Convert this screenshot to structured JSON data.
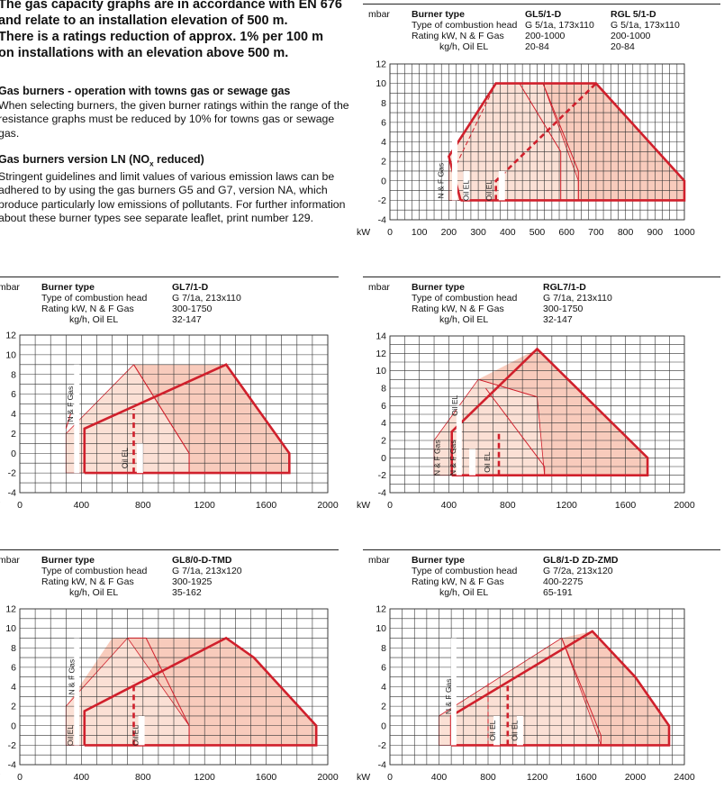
{
  "intro": {
    "headline": "The gas capacity graphs are in accordance with EN 676\nand relate to an installation elevation of 500 m.\nThere is a ratings reduction of approx. 1% per 100 m\non installations with an elevation above 500 m.",
    "section1_title": "Gas burners - operation with towns gas or sewage gas",
    "section1_text": "When selecting burners, the given burner ratings within the range of the resistance graphs must be reduced by 10% for towns gas or sewage gas.",
    "section2_title_pre": "Gas burners version LN (NO",
    "section2_title_sub": "x",
    "section2_title_post": " reduced)",
    "section2_text": "Stringent guidelines and limit values of various emission laws can be adhered to by using the gas burners G5 and G7, version NA, which produce particularly low emissions of pollutants. For further information about these burner types see separate leaflet, print number 129."
  },
  "row_labels": {
    "burner_type": "Burner type",
    "combustion_head": "Type of combustion head",
    "rating": "Rating kW,  N & F Gas",
    "oil": "kg/h, Oil EL",
    "mbar": "mbar",
    "kw": "kW",
    "gas_label": "N & F Gas",
    "oil_label": "Oil EL"
  },
  "colors": {
    "fill": "#f8cbbc",
    "fill_light": "#fbe0d5",
    "line": "#d0202c",
    "grid": "#333333"
  },
  "chart_data": [
    {
      "type": "area",
      "models": [
        {
          "name": "GL5/1-D",
          "head": "G 5/1a, 173x110",
          "rating": "200-1000",
          "oil": "20-84"
        },
        {
          "name": "RGL 5/1-D",
          "head": "G 5/1a, 173x110",
          "rating": "200-1000",
          "oil": "20-84"
        }
      ],
      "xticks": [
        0,
        100,
        200,
        300,
        400,
        500,
        600,
        700,
        800,
        900,
        1000
      ],
      "xticklabels": [
        "0",
        "100",
        "200",
        "300",
        "400",
        "500",
        "600",
        "700",
        "800",
        "900",
        "1000"
      ],
      "xlim": [
        0,
        1000
      ],
      "yticks": [
        -4,
        -2,
        0,
        2,
        4,
        6,
        8,
        10,
        12
      ],
      "ylim": [
        -4,
        12
      ],
      "fill_polygon": [
        [
          200,
          -2
        ],
        [
          200,
          2.5
        ],
        [
          360,
          10
        ],
        [
          700,
          10
        ],
        [
          1000,
          0
        ],
        [
          1000,
          -2
        ]
      ],
      "fill_light_polygon": [
        [
          200,
          2.5
        ],
        [
          360,
          10
        ],
        [
          520,
          10
        ],
        [
          640,
          0
        ],
        [
          640,
          -2
        ],
        [
          200,
          -2
        ]
      ],
      "thick_outline": [
        [
          240,
          -2
        ],
        [
          200,
          2.5
        ],
        [
          360,
          10
        ],
        [
          700,
          10
        ],
        [
          1000,
          0
        ],
        [
          1000,
          -2
        ],
        [
          240,
          -2
        ]
      ],
      "thin_curves": [
        [
          [
            520,
            10
          ],
          [
            640,
            1
          ],
          [
            640,
            -2
          ]
        ],
        [
          [
            440,
            10
          ],
          [
            580,
            3
          ],
          [
            580,
            -2
          ]
        ]
      ],
      "thin_dashed": [
        [
          [
            215,
            1
          ],
          [
            360,
            10
          ]
        ]
      ],
      "thick_dashed": [
        [
          [
            360,
            -2
          ],
          [
            360,
            0
          ],
          [
            700,
            10
          ]
        ]
      ],
      "gas_line": {
        "x": 220,
        "from": -2,
        "to": 5
      },
      "oil_lines": [
        {
          "x": 260,
          "from": -2,
          "to": 1
        },
        {
          "x": 380,
          "from": -2,
          "to": 1
        }
      ],
      "labels": [
        {
          "text": "N & F Gas",
          "x": 182,
          "y": 0
        },
        {
          "text": "Oil EL",
          "x": 267,
          "y": -1
        },
        {
          "text": "Oil EL",
          "x": 345,
          "y": -1
        }
      ]
    },
    {
      "type": "area",
      "models": [
        {
          "name": "GL7/1-D",
          "head": "G 7/1a, 213x110",
          "rating": "300-1750",
          "oil": "32-147"
        }
      ],
      "xticks": [
        0,
        400,
        800,
        1200,
        1600,
        2000
      ],
      "xticklabels": [
        "0",
        "400",
        "800",
        "1200",
        "1600",
        "2000"
      ],
      "xlim": [
        0,
        2000
      ],
      "yticks": [
        -4,
        -2,
        0,
        2,
        4,
        6,
        8,
        10,
        12
      ],
      "ylim": [
        -4,
        12
      ],
      "fill_polygon": [
        [
          300,
          -2
        ],
        [
          300,
          2
        ],
        [
          740,
          9
        ],
        [
          1340,
          9
        ],
        [
          1750,
          0
        ],
        [
          1750,
          -2
        ]
      ],
      "fill_light_polygon": [
        [
          300,
          2
        ],
        [
          740,
          9
        ],
        [
          1100,
          0
        ],
        [
          1100,
          -2
        ],
        [
          300,
          -2
        ]
      ],
      "thick_outline": [
        [
          420,
          -2
        ],
        [
          420,
          2.5
        ],
        [
          1340,
          9
        ],
        [
          1750,
          0
        ],
        [
          1750,
          -2
        ],
        [
          420,
          -2
        ]
      ],
      "thin_curves": [
        [
          [
            740,
            9
          ],
          [
            1100,
            0
          ],
          [
            1100,
            -2
          ]
        ],
        [
          [
            300,
            2.5
          ],
          [
            330,
            4
          ]
        ]
      ],
      "thin_dashed": [],
      "thick_dashed": [
        [
          [
            740,
            -2
          ],
          [
            740,
            4.5
          ]
        ]
      ],
      "gas_line": {
        "x": 370,
        "from": -2,
        "to": 9
      },
      "oil_lines": [
        {
          "x": 780,
          "from": -2,
          "to": 1
        }
      ],
      "labels": [
        {
          "text": "N & F Gas",
          "x": 345,
          "y": 5
        },
        {
          "text": "Oil EL",
          "x": 700,
          "y": -0.5
        }
      ]
    },
    {
      "type": "area",
      "models": [
        {
          "name": "RGL7/1-D",
          "head": "G 7/1a, 213x110",
          "rating": "300-1750",
          "oil": "32-147"
        }
      ],
      "xticks": [
        0,
        400,
        800,
        1200,
        1600,
        2000
      ],
      "xticklabels": [
        "0",
        "400",
        "800",
        "1200",
        "1600",
        "2000"
      ],
      "xlim": [
        0,
        2000
      ],
      "yticks": [
        -4,
        -2,
        0,
        2,
        4,
        6,
        8,
        10,
        12,
        14
      ],
      "ylim": [
        -4,
        14
      ],
      "fill_polygon": [
        [
          300,
          -2
        ],
        [
          300,
          2
        ],
        [
          600,
          9
        ],
        [
          1000,
          12.5
        ],
        [
          1750,
          0
        ],
        [
          1750,
          -2
        ]
      ],
      "fill_light_polygon": [
        [
          300,
          2
        ],
        [
          600,
          9
        ],
        [
          1000,
          7
        ],
        [
          1050,
          -2
        ],
        [
          300,
          -2
        ]
      ],
      "thick_outline": [
        [
          420,
          -2
        ],
        [
          420,
          3
        ],
        [
          1000,
          12.5
        ],
        [
          1750,
          0
        ],
        [
          1750,
          -2
        ],
        [
          420,
          -2
        ]
      ],
      "thin_curves": [
        [
          [
            600,
            9
          ],
          [
            1000,
            7
          ]
        ],
        [
          [
            650,
            8
          ],
          [
            1050,
            -1
          ],
          [
            1050,
            -2
          ]
        ]
      ],
      "thin_dashed": [],
      "thick_dashed": [
        [
          [
            740,
            -2
          ],
          [
            740,
            3
          ]
        ]
      ],
      "gas_line": {
        "x": 470,
        "from": -2,
        "to": 6
      },
      "oil_lines": [
        {
          "x": 560,
          "from": -2,
          "to": 1
        }
      ],
      "labels": [
        {
          "text": "N & F Gas",
          "x": 340,
          "y": 0
        },
        {
          "text": "N & F Gas",
          "x": 445,
          "y": 0
        },
        {
          "text": "Oil EL",
          "x": 460,
          "y": 6
        },
        {
          "text": "Oil EL",
          "x": 680,
          "y": -0.5
        }
      ]
    },
    {
      "type": "area",
      "models": [
        {
          "name": "GL8/0-D-TMD",
          "head": "G 7/1a, 213x120",
          "rating": "300-1925",
          "oil": "35-162"
        }
      ],
      "xticks": [
        0,
        400,
        800,
        1200,
        1600,
        2000
      ],
      "xticklabels": [
        "0",
        "400",
        "800",
        "1200",
        "1600",
        "2000"
      ],
      "xlim": [
        0,
        2000
      ],
      "yticks": [
        -4,
        -2,
        0,
        2,
        4,
        6,
        8,
        10,
        12
      ],
      "ylim": [
        -4,
        12
      ],
      "fill_polygon": [
        [
          300,
          -2
        ],
        [
          300,
          2
        ],
        [
          600,
          9
        ],
        [
          1340,
          9
        ],
        [
          1520,
          7
        ],
        [
          1925,
          0
        ],
        [
          1925,
          -2
        ]
      ],
      "fill_light_polygon": [
        [
          300,
          2
        ],
        [
          700,
          9
        ],
        [
          1100,
          0
        ],
        [
          1100,
          -2
        ],
        [
          300,
          -2
        ]
      ],
      "thick_outline": [
        [
          420,
          -2
        ],
        [
          420,
          1.5
        ],
        [
          1340,
          9
        ],
        [
          1520,
          7
        ],
        [
          1925,
          0
        ],
        [
          1925,
          -2
        ],
        [
          420,
          -2
        ]
      ],
      "thin_curves": [
        [
          [
            700,
            9
          ],
          [
            820,
            9
          ],
          [
            1100,
            0
          ],
          [
            1100,
            -2
          ]
        ]
      ],
      "thin_dashed": [],
      "thick_dashed": [
        [
          [
            740,
            -2
          ],
          [
            740,
            4.5
          ]
        ]
      ],
      "gas_line": {
        "x": 370,
        "from": -2,
        "to": 9
      },
      "oil_lines": [
        {
          "x": 790,
          "from": -2,
          "to": 1
        }
      ],
      "labels": [
        {
          "text": "N & F Gas",
          "x": 355,
          "y": 5
        },
        {
          "text": "Oil EL",
          "x": 345,
          "y": -1
        },
        {
          "text": "Oil EL",
          "x": 770,
          "y": -1
        }
      ]
    },
    {
      "type": "area",
      "models": [
        {
          "name": "GL8/1-D ZD-ZMD",
          "head": "G 7/2a, 213x120",
          "rating": "400-2275",
          "oil": "65-191"
        }
      ],
      "xticks": [
        0,
        400,
        800,
        1200,
        1600,
        2000,
        2400
      ],
      "xticklabels": [
        "0",
        "400",
        "800",
        "1200",
        "1600",
        "2000",
        "2400"
      ],
      "xlim": [
        0,
        2400
      ],
      "yticks": [
        -4,
        -2,
        0,
        2,
        4,
        6,
        8,
        10,
        12
      ],
      "ylim": [
        -4,
        12
      ],
      "fill_polygon": [
        [
          400,
          -2
        ],
        [
          400,
          1
        ],
        [
          1400,
          9
        ],
        [
          1650,
          9.7
        ],
        [
          2000,
          5
        ],
        [
          2275,
          0
        ],
        [
          2275,
          -2
        ]
      ],
      "fill_light_polygon": [
        [
          400,
          1
        ],
        [
          1400,
          9
        ],
        [
          1720,
          -2
        ],
        [
          400,
          -2
        ]
      ],
      "thick_outline": [
        [
          500,
          -2
        ],
        [
          500,
          1
        ],
        [
          1650,
          9.7
        ],
        [
          2000,
          5
        ],
        [
          2275,
          0
        ],
        [
          2275,
          -2
        ],
        [
          500,
          -2
        ]
      ],
      "thin_curves": [
        [
          [
            1400,
            9
          ],
          [
            1720,
            -1
          ],
          [
            1720,
            -2
          ]
        ]
      ],
      "thin_dashed": [
        [
          [
            800,
            -2
          ],
          [
            800,
            4.5
          ]
        ]
      ],
      "thick_dashed": [
        [
          [
            960,
            -2
          ],
          [
            960,
            4.5
          ]
        ]
      ],
      "gas_line": {
        "x": 520,
        "from": -2,
        "to": 9
      },
      "oil_lines": [
        {
          "x": 870,
          "from": -2,
          "to": 1
        },
        {
          "x": 1060,
          "from": -2,
          "to": 1
        }
      ],
      "labels": [
        {
          "text": "N & F Gas",
          "x": 500,
          "y": 3
        },
        {
          "text": "Oil EL",
          "x": 860,
          "y": -0.5
        },
        {
          "text": "Oil EL",
          "x": 1040,
          "y": -0.5
        }
      ]
    }
  ]
}
